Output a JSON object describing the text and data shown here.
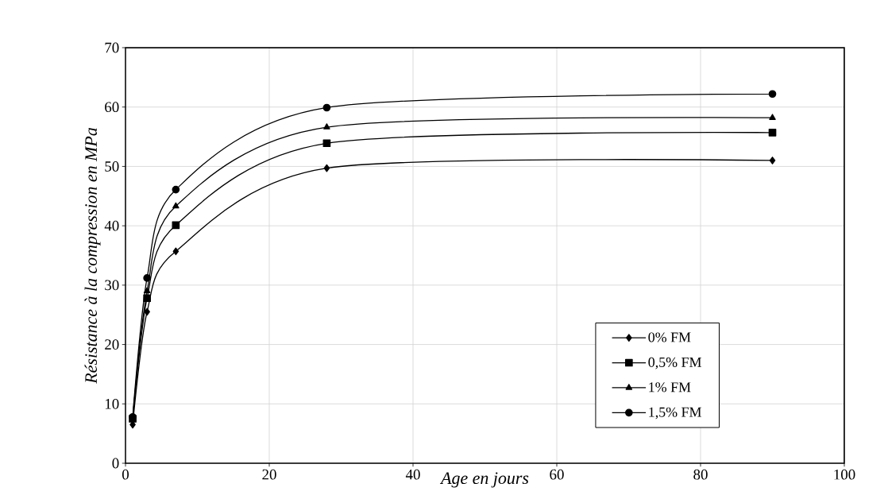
{
  "chart_data": {
    "type": "line",
    "xlabel": "Age en jours",
    "ylabel": "Résistance à la compression en MPa",
    "x": [
      1,
      3,
      7,
      28,
      90
    ],
    "series": [
      {
        "name": "0% FM",
        "color": "#000000",
        "marker": "diamond",
        "values": [
          6.5,
          25.5,
          35.7,
          49.7,
          51.0
        ]
      },
      {
        "name": "0,5% FM",
        "color": "#000000",
        "marker": "square",
        "values": [
          7.5,
          27.8,
          40.1,
          53.9,
          55.7
        ]
      },
      {
        "name": "1% FM",
        "color": "#000000",
        "marker": "triangle",
        "values": [
          7.5,
          29.0,
          43.3,
          56.6,
          58.2
        ]
      },
      {
        "name": "1,5% FM",
        "color": "#000000",
        "marker": "circle",
        "values": [
          7.8,
          31.2,
          46.1,
          59.9,
          62.2
        ]
      }
    ],
    "xlim": [
      0,
      100
    ],
    "ylim": [
      0,
      70
    ],
    "xticks": [
      0,
      20,
      40,
      60,
      80,
      100
    ],
    "yticks": [
      0,
      10,
      20,
      30,
      40,
      50,
      60,
      70
    ],
    "grid": true,
    "legend": "bottom right",
    "line_style": "solid"
  }
}
